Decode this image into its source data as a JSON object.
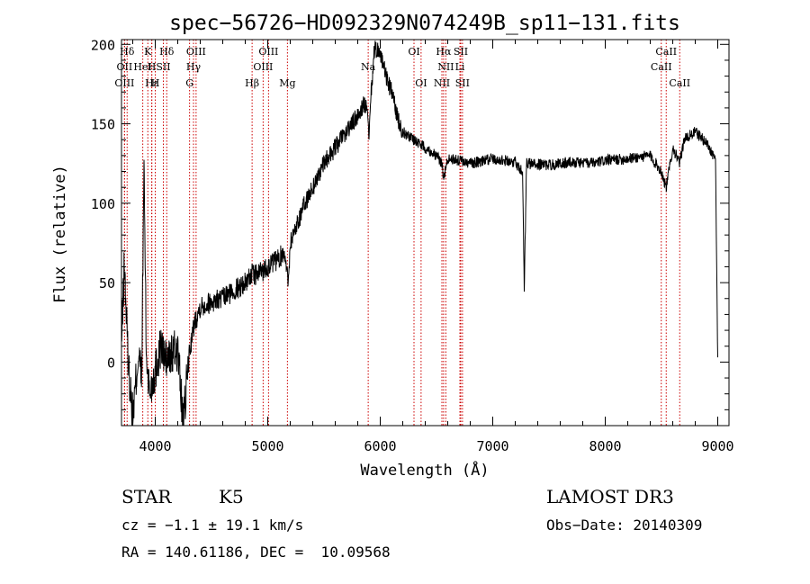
{
  "chart_data": {
    "type": "line",
    "title": "spec−56726−HD092329N074249B_sp11−131.fits",
    "xlabel": "Wavelength (Å)",
    "ylabel": "Flux (relative)",
    "xlim": [
      3700,
      9100
    ],
    "ylim": [
      -40,
      203
    ],
    "xticks": [
      4000,
      5000,
      6000,
      7000,
      8000,
      9000
    ],
    "yticks": [
      0,
      50,
      100,
      150,
      200
    ],
    "grid": false,
    "line_color": "#000000",
    "marker_color": "#cc0000",
    "spectrum_key_points": [
      [
        3700,
        10
      ],
      [
        3725,
        62
      ],
      [
        3760,
        0
      ],
      [
        3800,
        -35
      ],
      [
        3850,
        5
      ],
      [
        3880,
        -10
      ],
      [
        3900,
        128
      ],
      [
        3920,
        5
      ],
      [
        3950,
        -20
      ],
      [
        4000,
        -5
      ],
      [
        4050,
        10
      ],
      [
        4100,
        0
      ],
      [
        4150,
        5
      ],
      [
        4200,
        8
      ],
      [
        4250,
        -40
      ],
      [
        4300,
        5
      ],
      [
        4350,
        25
      ],
      [
        4400,
        35
      ],
      [
        4500,
        38
      ],
      [
        4600,
        40
      ],
      [
        4700,
        45
      ],
      [
        4800,
        50
      ],
      [
        4850,
        55
      ],
      [
        4900,
        55
      ],
      [
        5000,
        60
      ],
      [
        5100,
        65
      ],
      [
        5150,
        70
      ],
      [
        5180,
        50
      ],
      [
        5200,
        75
      ],
      [
        5300,
        95
      ],
      [
        5400,
        110
      ],
      [
        5500,
        125
      ],
      [
        5600,
        135
      ],
      [
        5700,
        145
      ],
      [
        5800,
        155
      ],
      [
        5850,
        162
      ],
      [
        5880,
        160
      ],
      [
        5900,
        140
      ],
      [
        5920,
        170
      ],
      [
        5950,
        198
      ],
      [
        6000,
        195
      ],
      [
        6050,
        180
      ],
      [
        6100,
        170
      ],
      [
        6150,
        155
      ],
      [
        6200,
        145
      ],
      [
        6300,
        140
      ],
      [
        6400,
        135
      ],
      [
        6500,
        130
      ],
      [
        6550,
        125
      ],
      [
        6563,
        115
      ],
      [
        6600,
        128
      ],
      [
        6700,
        127
      ],
      [
        6800,
        125
      ],
      [
        7000,
        128
      ],
      [
        7200,
        126
      ],
      [
        7265,
        120
      ],
      [
        7280,
        45
      ],
      [
        7300,
        125
      ],
      [
        7500,
        124
      ],
      [
        7700,
        126
      ],
      [
        7900,
        125
      ],
      [
        8000,
        127
      ],
      [
        8200,
        128
      ],
      [
        8400,
        130
      ],
      [
        8498,
        120
      ],
      [
        8542,
        110
      ],
      [
        8600,
        135
      ],
      [
        8662,
        125
      ],
      [
        8700,
        140
      ],
      [
        8800,
        145
      ],
      [
        8900,
        138
      ],
      [
        8980,
        128
      ],
      [
        9000,
        0
      ]
    ],
    "lines": [
      {
        "label": "Hδ",
        "wave": 3750,
        "row": 0
      },
      {
        "label": "K",
        "wave": 3934,
        "row": 0
      },
      {
        "label": "Hδ",
        "wave": 4102,
        "row": 0
      },
      {
        "label": "OIII",
        "wave": 4363,
        "row": 0
      },
      {
        "label": "OIII",
        "wave": 5007,
        "row": 0
      },
      {
        "label": "OI",
        "wave": 6300,
        "row": 0
      },
      {
        "label": "Hα",
        "wave": 6563,
        "row": 0
      },
      {
        "label": "SII",
        "wave": 6716,
        "row": 0
      },
      {
        "label": "CaII",
        "wave": 8542,
        "row": 0
      },
      {
        "label": "OII",
        "wave": 3727,
        "row": 1
      },
      {
        "label": "H",
        "wave": 3968,
        "row": 1
      },
      {
        "label": "HeI",
        "wave": 3889,
        "row": 1
      },
      {
        "label": "SII",
        "wave": 4072,
        "row": 1
      },
      {
        "label": "Hγ",
        "wave": 4340,
        "row": 1
      },
      {
        "label": "OIII",
        "wave": 4959,
        "row": 1
      },
      {
        "label": "Na",
        "wave": 5893,
        "row": 1
      },
      {
        "label": "NII",
        "wave": 6583,
        "row": 1
      },
      {
        "label": "Li",
        "wave": 6708,
        "row": 1
      },
      {
        "label": "CaII",
        "wave": 8498,
        "row": 1
      },
      {
        "label": "OIII",
        "wave": 3727,
        "row": 2
      },
      {
        "label": "Hε",
        "wave": 3970,
        "row": 2
      },
      {
        "label": "H",
        "wave": 4000,
        "row": 2
      },
      {
        "label": "G",
        "wave": 4305,
        "row": 2
      },
      {
        "label": "Hβ",
        "wave": 4861,
        "row": 2
      },
      {
        "label": "Mg",
        "wave": 5175,
        "row": 2
      },
      {
        "label": "OI",
        "wave": 6363,
        "row": 2
      },
      {
        "label": "NII",
        "wave": 6548,
        "row": 2
      },
      {
        "label": "SII",
        "wave": 6731,
        "row": 2
      },
      {
        "label": "CaII",
        "wave": 8662,
        "row": 2
      }
    ]
  },
  "info": {
    "object_class": "STAR",
    "subclass": "K5",
    "survey": "LAMOST DR3",
    "cz_line": "cz = −1.1 ± 19.1 km/s",
    "obs_date_line": "Obs−Date: 20140309",
    "radec_line": "RA = 140.61186, DEC =  10.09568"
  }
}
